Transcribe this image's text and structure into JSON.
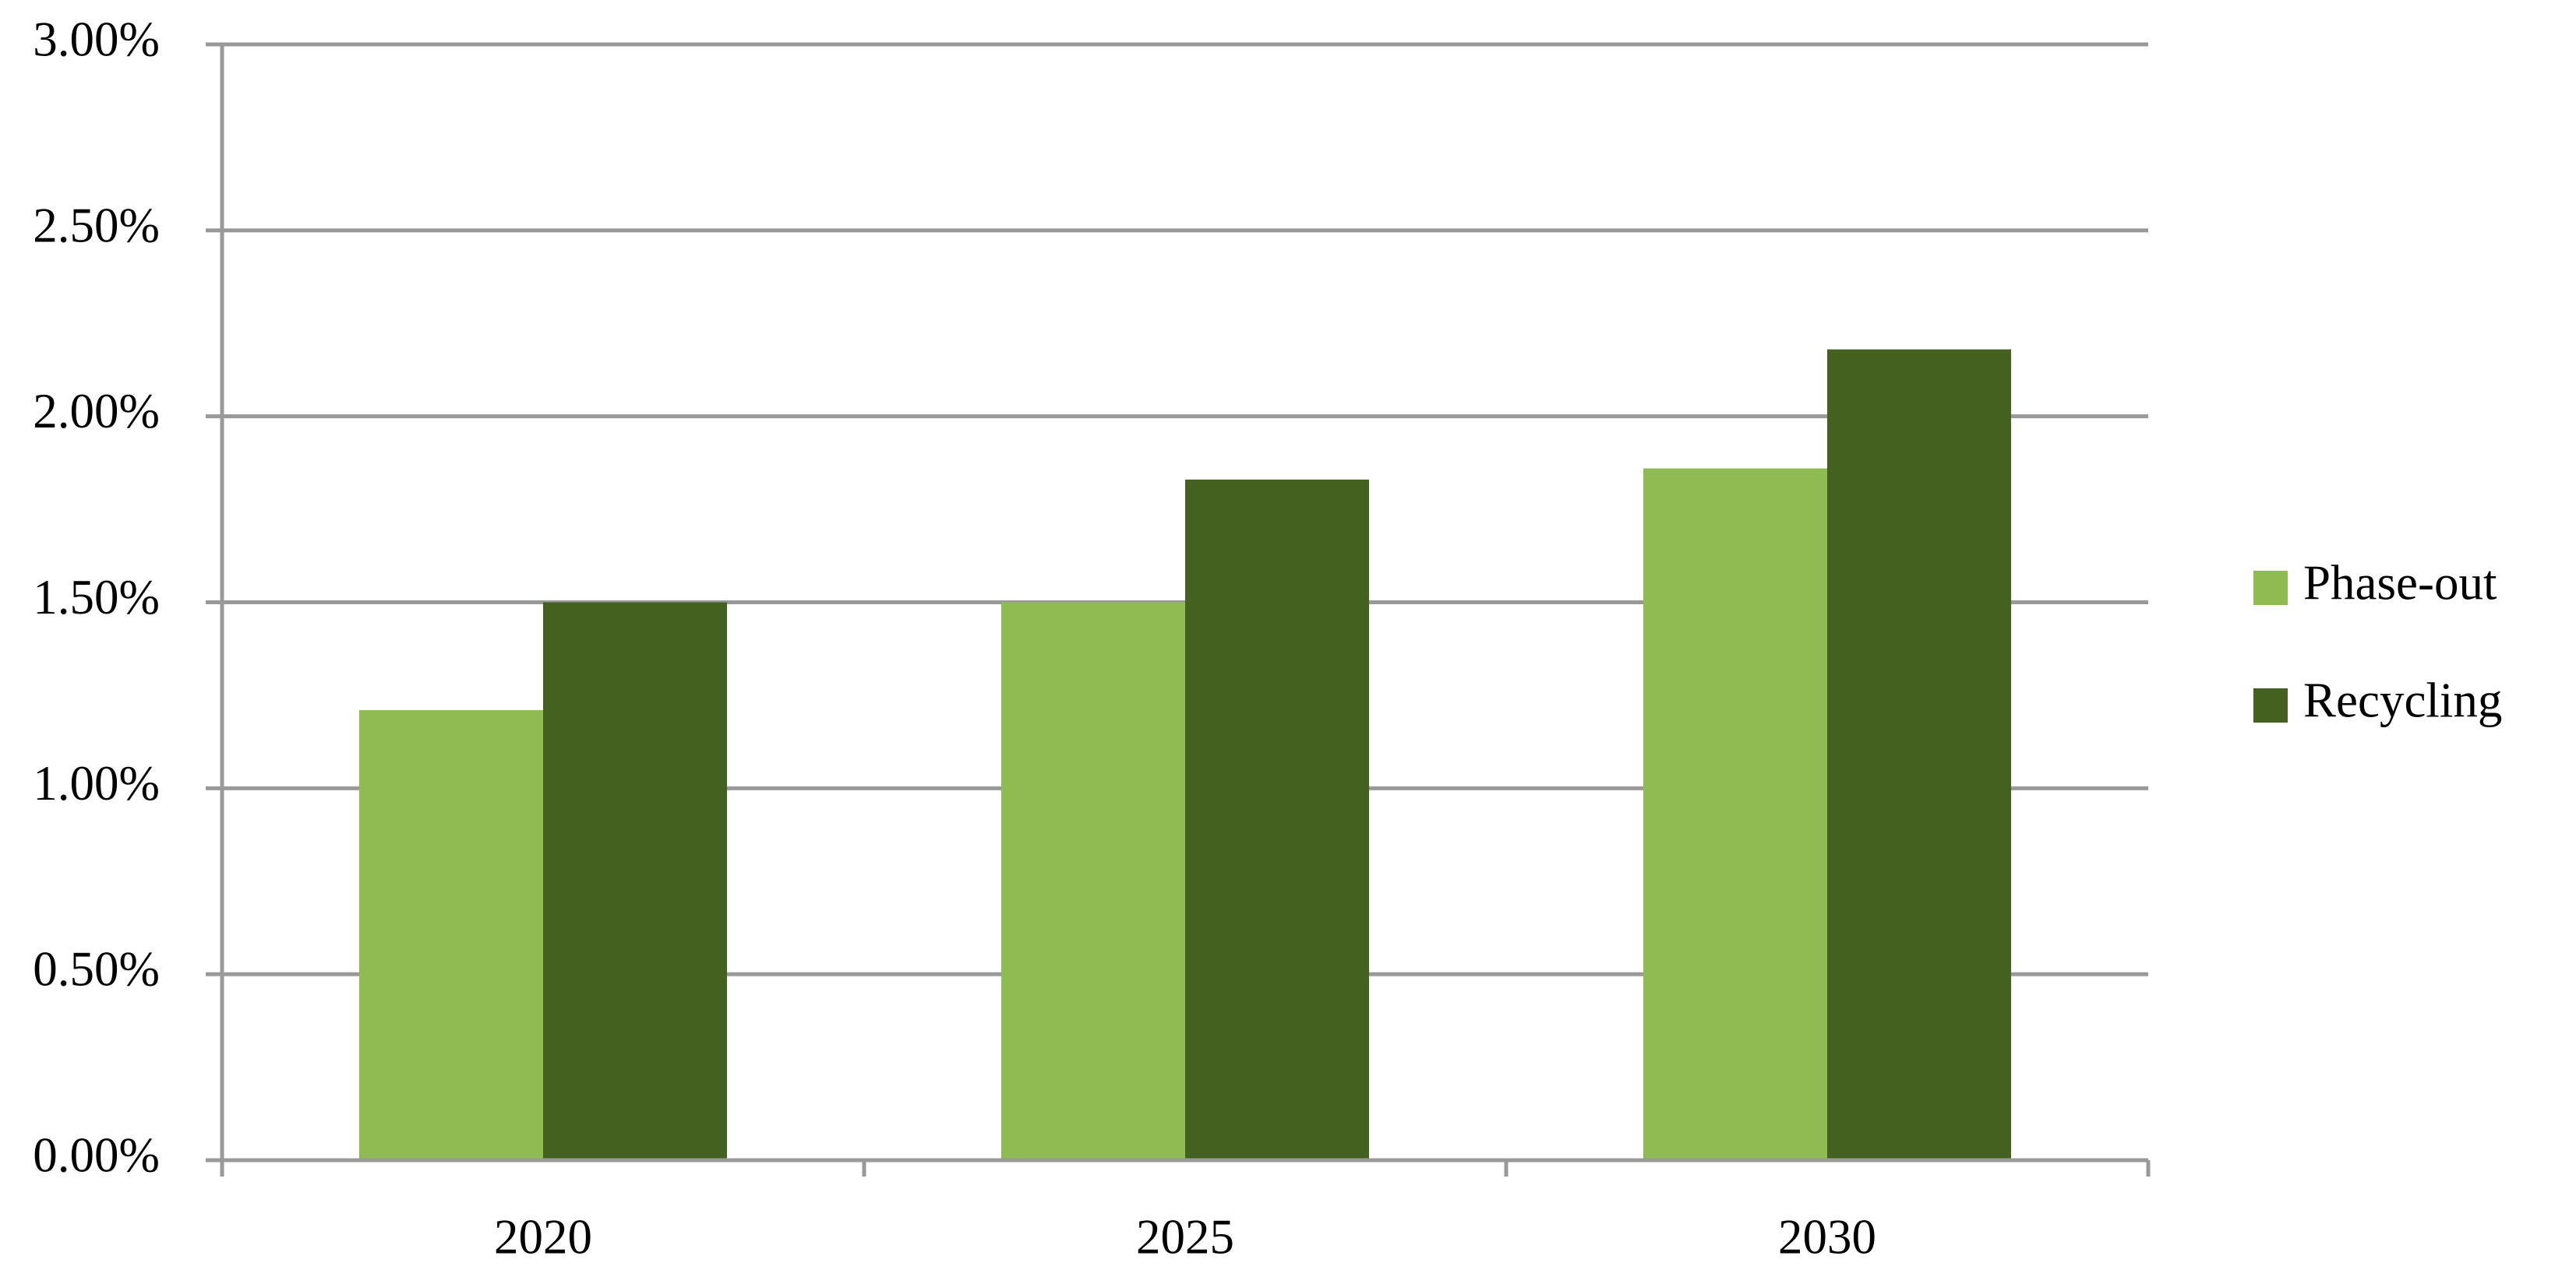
{
  "chart_data": {
    "type": "bar",
    "categories": [
      "2020",
      "2025",
      "2030"
    ],
    "series": [
      {
        "name": "Phase-out",
        "color": "#8fbc52",
        "values": [
          1.21,
          1.5,
          1.86
        ]
      },
      {
        "name": "Recycling",
        "color": "#45611f",
        "values": [
          1.5,
          1.83,
          2.18
        ]
      }
    ],
    "ylim": [
      0,
      3
    ],
    "yticks": [
      {
        "value": 0,
        "label": "0.00%"
      },
      {
        "value": 0.5,
        "label": "0.50%"
      },
      {
        "value": 1,
        "label": "1.00%"
      },
      {
        "value": 1.5,
        "label": "1.50%"
      },
      {
        "value": 2,
        "label": "2.00%"
      },
      {
        "value": 2.5,
        "label": "2.50%"
      },
      {
        "value": 3,
        "label": "3.00%"
      }
    ],
    "grid": true,
    "legend": "right"
  }
}
